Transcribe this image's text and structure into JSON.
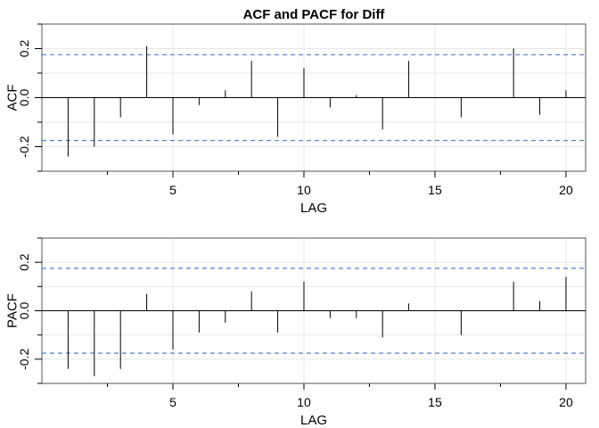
{
  "chart_data": [
    {
      "type": "bar",
      "title": "ACF and PACF for Diff",
      "xlabel": "LAG",
      "ylabel": "ACF",
      "xlim": [
        0,
        20.75
      ],
      "ylim": [
        -0.3,
        0.3
      ],
      "x_ticks": [
        5,
        10,
        15,
        20
      ],
      "x_minor_ticks": [
        2.5,
        7.5,
        12.5,
        17.5
      ],
      "y_ticks": [
        -0.2,
        0.0,
        0.2
      ],
      "y_tick_labels": [
        "-0.2",
        "0.0",
        "0.2"
      ],
      "grid": true,
      "confidence_bound": 0.175,
      "confidence_color": "#3b73c4",
      "lags": [
        1,
        2,
        3,
        4,
        5,
        6,
        7,
        8,
        9,
        10,
        11,
        12,
        13,
        14,
        15,
        16,
        17,
        18,
        19,
        20
      ],
      "values": [
        -0.24,
        -0.2,
        -0.08,
        0.21,
        -0.15,
        -0.03,
        0.03,
        0.15,
        -0.16,
        0.12,
        -0.04,
        0.01,
        -0.13,
        0.15,
        0.0,
        -0.08,
        0.0,
        0.2,
        -0.07,
        0.03
      ]
    },
    {
      "type": "bar",
      "title": "",
      "xlabel": "LAG",
      "ylabel": "PACF",
      "xlim": [
        0,
        20.75
      ],
      "ylim": [
        -0.3,
        0.3
      ],
      "x_ticks": [
        5,
        10,
        15,
        20
      ],
      "x_minor_ticks": [
        2.5,
        7.5,
        12.5,
        17.5
      ],
      "y_ticks": [
        -0.2,
        0.0,
        0.2
      ],
      "y_tick_labels": [
        "-0.2",
        "0.0",
        "0.2"
      ],
      "grid": true,
      "confidence_bound": 0.175,
      "confidence_color": "#3b73c4",
      "lags": [
        1,
        2,
        3,
        4,
        5,
        6,
        7,
        8,
        9,
        10,
        11,
        12,
        13,
        14,
        15,
        16,
        17,
        18,
        19,
        20
      ],
      "values": [
        -0.24,
        -0.27,
        -0.24,
        0.07,
        -0.16,
        -0.09,
        -0.05,
        0.08,
        -0.09,
        0.12,
        -0.03,
        -0.03,
        -0.11,
        0.03,
        0.0,
        -0.1,
        0.0,
        0.12,
        0.04,
        0.14
      ]
    }
  ]
}
